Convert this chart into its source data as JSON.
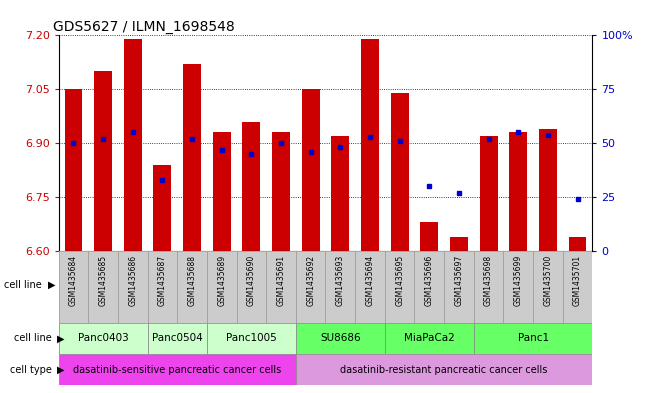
{
  "title": "GDS5627 / ILMN_1698548",
  "samples": [
    "GSM1435684",
    "GSM1435685",
    "GSM1435686",
    "GSM1435687",
    "GSM1435688",
    "GSM1435689",
    "GSM1435690",
    "GSM1435691",
    "GSM1435692",
    "GSM1435693",
    "GSM1435694",
    "GSM1435695",
    "GSM1435696",
    "GSM1435697",
    "GSM1435698",
    "GSM1435699",
    "GSM1435700",
    "GSM1435701"
  ],
  "transformed_count": [
    7.05,
    7.1,
    7.19,
    6.84,
    7.12,
    6.93,
    6.96,
    6.93,
    7.05,
    6.92,
    7.19,
    7.04,
    6.68,
    6.64,
    6.92,
    6.93,
    6.94,
    6.64
  ],
  "percentile_rank": [
    50,
    52,
    55,
    33,
    52,
    47,
    45,
    50,
    46,
    48,
    53,
    51,
    30,
    27,
    52,
    55,
    54,
    24
  ],
  "ylim": [
    6.6,
    7.2
  ],
  "yticks": [
    6.6,
    6.75,
    6.9,
    7.05,
    7.2
  ],
  "percentile_ylim": [
    0,
    100
  ],
  "percentile_yticks": [
    0,
    25,
    50,
    75,
    100
  ],
  "bar_color": "#cc0000",
  "dot_color": "#0000cc",
  "bar_width": 0.6,
  "cell_line_groups": [
    {
      "name": "Panc0403",
      "start": 0,
      "end": 2,
      "color": "#ccffcc"
    },
    {
      "name": "Panc0504",
      "start": 3,
      "end": 4,
      "color": "#ccffcc"
    },
    {
      "name": "Panc1005",
      "start": 5,
      "end": 7,
      "color": "#ccffcc"
    },
    {
      "name": "SU8686",
      "start": 8,
      "end": 10,
      "color": "#66ff66"
    },
    {
      "name": "MiaPaCa2",
      "start": 11,
      "end": 13,
      "color": "#66ff66"
    },
    {
      "name": "Panc1",
      "start": 14,
      "end": 17,
      "color": "#66ff66"
    }
  ],
  "cell_type_groups": [
    {
      "name": "dasatinib-sensitive pancreatic cancer cells",
      "start": 0,
      "end": 7,
      "color": "#ee44ee"
    },
    {
      "name": "dasatinib-resistant pancreatic cancer cells",
      "start": 8,
      "end": 17,
      "color": "#dd99dd"
    }
  ],
  "sample_box_color": "#cccccc",
  "background_color": "#ffffff",
  "label_color_left": "#cc0000",
  "label_color_right": "#0000cc"
}
